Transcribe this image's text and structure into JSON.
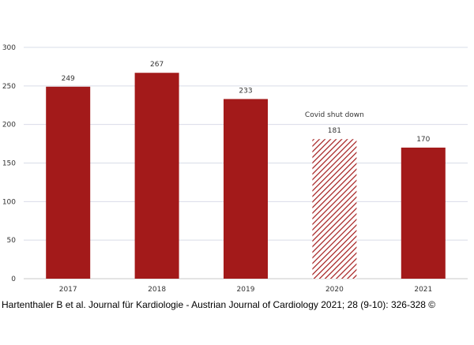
{
  "chart_data": {
    "type": "bar",
    "categories": [
      "2017",
      "2018",
      "2019",
      "2020",
      "2021"
    ],
    "values": [
      249,
      267,
      233,
      181,
      170
    ],
    "ylim": [
      0,
      300
    ],
    "yticks": [
      0,
      50,
      100,
      150,
      200,
      250,
      300
    ],
    "grid": true,
    "hatched_category": "2020",
    "annotation": {
      "text": "Covid shut down",
      "category": "2020"
    },
    "title": "",
    "xlabel": "",
    "ylabel": ""
  },
  "colors": {
    "bar": "#a31a1a",
    "grid": "#d9dce8",
    "axis": "#c8c8c8"
  },
  "caption": "Hartenthaler B et al. Journal für Kardiologie - Austrian Journal of Cardiology 2021; 28 (9-10): 326-328 ©"
}
